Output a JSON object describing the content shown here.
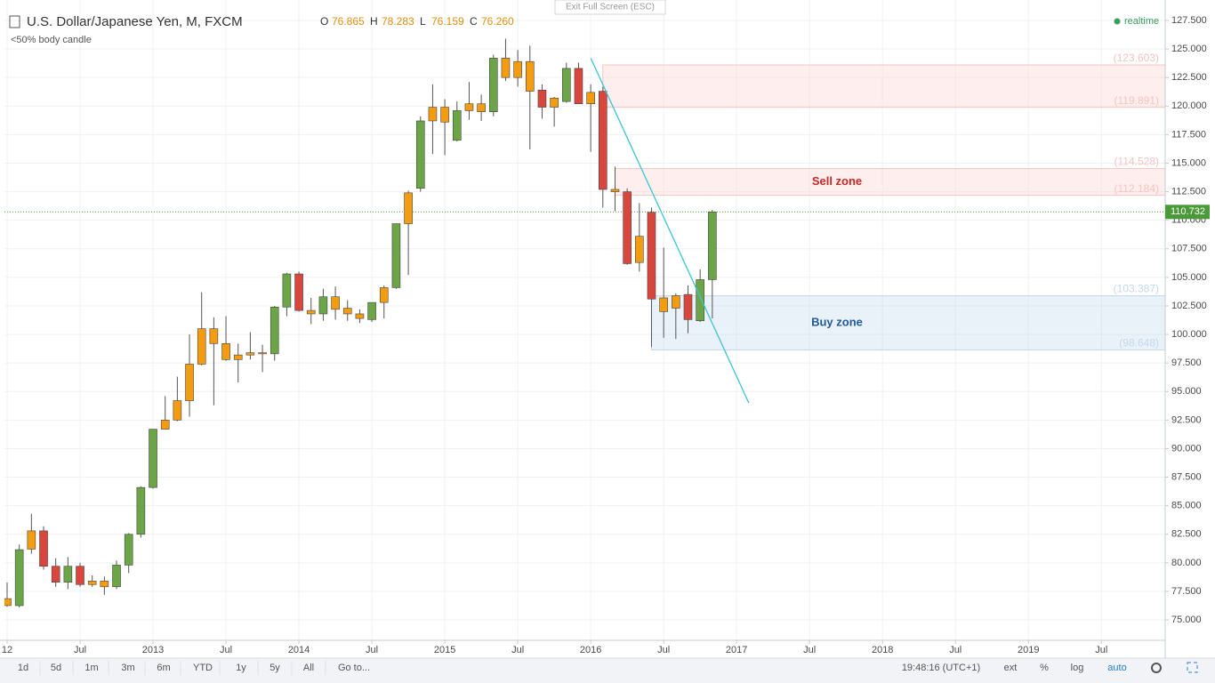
{
  "header": {
    "symbol": "U.S. Dollar/Japanese Yen, M, FXCM",
    "indicator": "<50% body candle",
    "exit": "Exit Full Screen (ESC)",
    "status": "realtime",
    "ohlc_letters": [
      "O",
      "H",
      "L",
      "C"
    ],
    "ohlc_values": [
      "76.865",
      "78.283",
      "76.159",
      "76.260"
    ]
  },
  "chart_data": {
    "type": "candlestick",
    "x": [
      "2012-01",
      "2012-02",
      "2012-03",
      "2012-04",
      "2012-05",
      "2012-06",
      "2012-07",
      "2012-08",
      "2012-09",
      "2012-10",
      "2012-11",
      "2012-12",
      "2013-01",
      "2013-02",
      "2013-03",
      "2013-04",
      "2013-05",
      "2013-06",
      "2013-07",
      "2013-08",
      "2013-09",
      "2013-10",
      "2013-11",
      "2013-12",
      "2014-01",
      "2014-02",
      "2014-03",
      "2014-04",
      "2014-05",
      "2014-06",
      "2014-07",
      "2014-08",
      "2014-09",
      "2014-10",
      "2014-11",
      "2014-12",
      "2015-01",
      "2015-02",
      "2015-03",
      "2015-04",
      "2015-05",
      "2015-06",
      "2015-07",
      "2015-08",
      "2015-09",
      "2015-10",
      "2015-11",
      "2015-12",
      "2016-01",
      "2016-02",
      "2016-03",
      "2016-04",
      "2016-05",
      "2016-06",
      "2016-07",
      "2016-08",
      "2016-09",
      "2016-10",
      "2016-11"
    ],
    "open": [
      76.865,
      76.25,
      81.2,
      82.8,
      79.7,
      78.3,
      79.7,
      78.1,
      78.4,
      77.9,
      79.8,
      82.5,
      86.6,
      91.7,
      92.5,
      94.2,
      97.4,
      100.5,
      99.2,
      97.8,
      98.2,
      98.4,
      98.3,
      102.4,
      105.3,
      102.1,
      101.8,
      103.3,
      102.3,
      101.8,
      101.3,
      102.8,
      104.1,
      109.7,
      112.8,
      118.7,
      119.9,
      117.0,
      119.6,
      120.2,
      119.5,
      124.2,
      122.5,
      123.9,
      121.4,
      119.9,
      120.4,
      123.3,
      120.2,
      121.3,
      112.7,
      112.5,
      106.3,
      110.7,
      103.2,
      102.3,
      103.5,
      101.2,
      104.8
    ],
    "high": [
      78.283,
      81.6,
      84.3,
      83.2,
      80.4,
      80.5,
      80.0,
      78.9,
      78.8,
      80.2,
      82.6,
      86.7,
      91.7,
      94.6,
      96.3,
      100.0,
      103.7,
      101.5,
      101.6,
      99.2,
      100.2,
      99.1,
      102.5,
      105.4,
      105.5,
      103.2,
      104.0,
      104.2,
      103.0,
      102.2,
      102.8,
      104.3,
      109.7,
      112.6,
      119.1,
      121.9,
      120.6,
      120.4,
      122.1,
      121.0,
      124.5,
      125.9,
      124.9,
      125.3,
      121.9,
      120.8,
      123.8,
      123.8,
      121.9,
      121.7,
      114.7,
      112.8,
      111.5,
      111.1,
      107.6,
      103.6,
      104.3,
      105.7,
      110.9
    ],
    "low": [
      76.159,
      76.1,
      80.8,
      79.4,
      77.9,
      77.7,
      77.9,
      77.9,
      77.2,
      77.7,
      79.1,
      82.2,
      86.5,
      91.7,
      92.4,
      92.8,
      97.3,
      93.8,
      97.7,
      95.8,
      97.8,
      96.7,
      97.7,
      101.6,
      102.0,
      100.9,
      101.2,
      101.3,
      101.2,
      101.0,
      101.1,
      101.4,
      104.0,
      105.2,
      112.5,
      115.8,
      115.7,
      116.9,
      118.8,
      118.7,
      119.1,
      122.2,
      121.7,
      116.2,
      118.9,
      118.2,
      120.3,
      120.2,
      116.0,
      111.1,
      110.8,
      106.1,
      105.5,
      98.9,
      99.7,
      99.6,
      100.1,
      101.1,
      101.4
    ],
    "close": [
      76.26,
      81.15,
      82.8,
      79.7,
      78.3,
      79.7,
      78.1,
      78.4,
      77.9,
      79.8,
      82.5,
      86.6,
      91.7,
      92.5,
      94.2,
      97.4,
      100.5,
      99.2,
      97.8,
      98.2,
      98.4,
      98.3,
      102.4,
      105.3,
      102.1,
      101.8,
      103.3,
      102.2,
      101.8,
      101.4,
      102.8,
      104.1,
      109.7,
      112.4,
      118.7,
      119.9,
      118.6,
      119.6,
      120.2,
      119.5,
      124.2,
      122.5,
      123.9,
      121.3,
      119.9,
      120.7,
      123.3,
      120.2,
      121.2,
      112.7,
      112.5,
      106.2,
      108.6,
      103.1,
      102.0,
      103.4,
      101.3,
      104.8,
      110.732
    ],
    "up_color": "#6ba547",
    "down_color": "#d9463e",
    "small_body_color": "#f39c12",
    "xlim": [
      "2011-12",
      "2019-12"
    ],
    "xticks": [
      {
        "value": "2012-01",
        "label": "12"
      },
      {
        "value": "2012-07",
        "label": "Jul"
      },
      {
        "value": "2013-01",
        "label": "2013"
      },
      {
        "value": "2013-07",
        "label": "Jul"
      },
      {
        "value": "2014-01",
        "label": "2014"
      },
      {
        "value": "2014-07",
        "label": "Jul"
      },
      {
        "value": "2015-01",
        "label": "2015"
      },
      {
        "value": "2015-07",
        "label": "Jul"
      },
      {
        "value": "2016-01",
        "label": "2016"
      },
      {
        "value": "2016-07",
        "label": "Jul"
      },
      {
        "value": "2017-01",
        "label": "2017"
      },
      {
        "value": "2017-07",
        "label": "Jul"
      },
      {
        "value": "2018-01",
        "label": "2018"
      },
      {
        "value": "2018-07",
        "label": "Jul"
      },
      {
        "value": "2019-01",
        "label": "2019"
      },
      {
        "value": "2019-07",
        "label": "Jul"
      }
    ],
    "ylim": [
      73.4,
      128.9
    ],
    "yticks": [
      {
        "value": 75,
        "label": "75.000"
      },
      {
        "value": 77.5,
        "label": "77.500"
      },
      {
        "value": 80,
        "label": "80.000"
      },
      {
        "value": 82.5,
        "label": "82.500"
      },
      {
        "value": 85,
        "label": "85.000"
      },
      {
        "value": 87.5,
        "label": "87.500"
      },
      {
        "value": 90,
        "label": "90.000"
      },
      {
        "value": 92.5,
        "label": "92.500"
      },
      {
        "value": 95,
        "label": "95.000"
      },
      {
        "value": 97.5,
        "label": "97.500"
      },
      {
        "value": 100,
        "label": "100.000"
      },
      {
        "value": 102.5,
        "label": "102.500"
      },
      {
        "value": 105,
        "label": "105.000"
      },
      {
        "value": 107.5,
        "label": "107.500"
      },
      {
        "value": 110,
        "label": "110.000"
      },
      {
        "value": 112.5,
        "label": "112.500"
      },
      {
        "value": 115,
        "label": "115.000"
      },
      {
        "value": 117.5,
        "label": "117.500"
      },
      {
        "value": 120,
        "label": "120.000"
      },
      {
        "value": 122.5,
        "label": "122.500"
      },
      {
        "value": 125,
        "label": "125.000"
      },
      {
        "value": 127.5,
        "label": "127.500"
      }
    ],
    "grid": true,
    "zones": [
      {
        "low": 119.891,
        "high": 123.603,
        "low_label": "(119.891)",
        "high_label": "(123.603)",
        "start": "2016-02",
        "fill": "rgba(255,205,205,0.35)",
        "stroke": "#f4c4c4"
      },
      {
        "label": "Sell zone",
        "low": 112.184,
        "high": 114.528,
        "low_label": "(112.184)",
        "high_label": "(114.528)",
        "start": "2016-03",
        "fill": "rgba(255,205,205,0.35)",
        "stroke": "#f4c4c4",
        "label_color": "#c62828"
      },
      {
        "label": "Buy zone",
        "low": 98.648,
        "high": 103.387,
        "low_label": "(98.648)",
        "high_label": "(103.387)",
        "start": "2016-06",
        "fill": "rgba(200,220,240,0.4)",
        "stroke": "#c6d8ea",
        "label_color": "#1e5a96"
      }
    ],
    "trendline": {
      "x": [
        "2016-01",
        "2017-02"
      ],
      "y": [
        124.2,
        94.0
      ],
      "color": "#3cc4d4"
    },
    "last_price_color": "#4a9a3a"
  },
  "bottom_toolbar": {
    "ranges": [
      "1d",
      "5d",
      "1m",
      "3m",
      "6m",
      "YTD",
      "1y",
      "5y",
      "All",
      "Go to..."
    ],
    "clock": "19:48:16 (UTC+1)",
    "options": [
      "ext",
      "%",
      "log",
      "auto"
    ]
  }
}
